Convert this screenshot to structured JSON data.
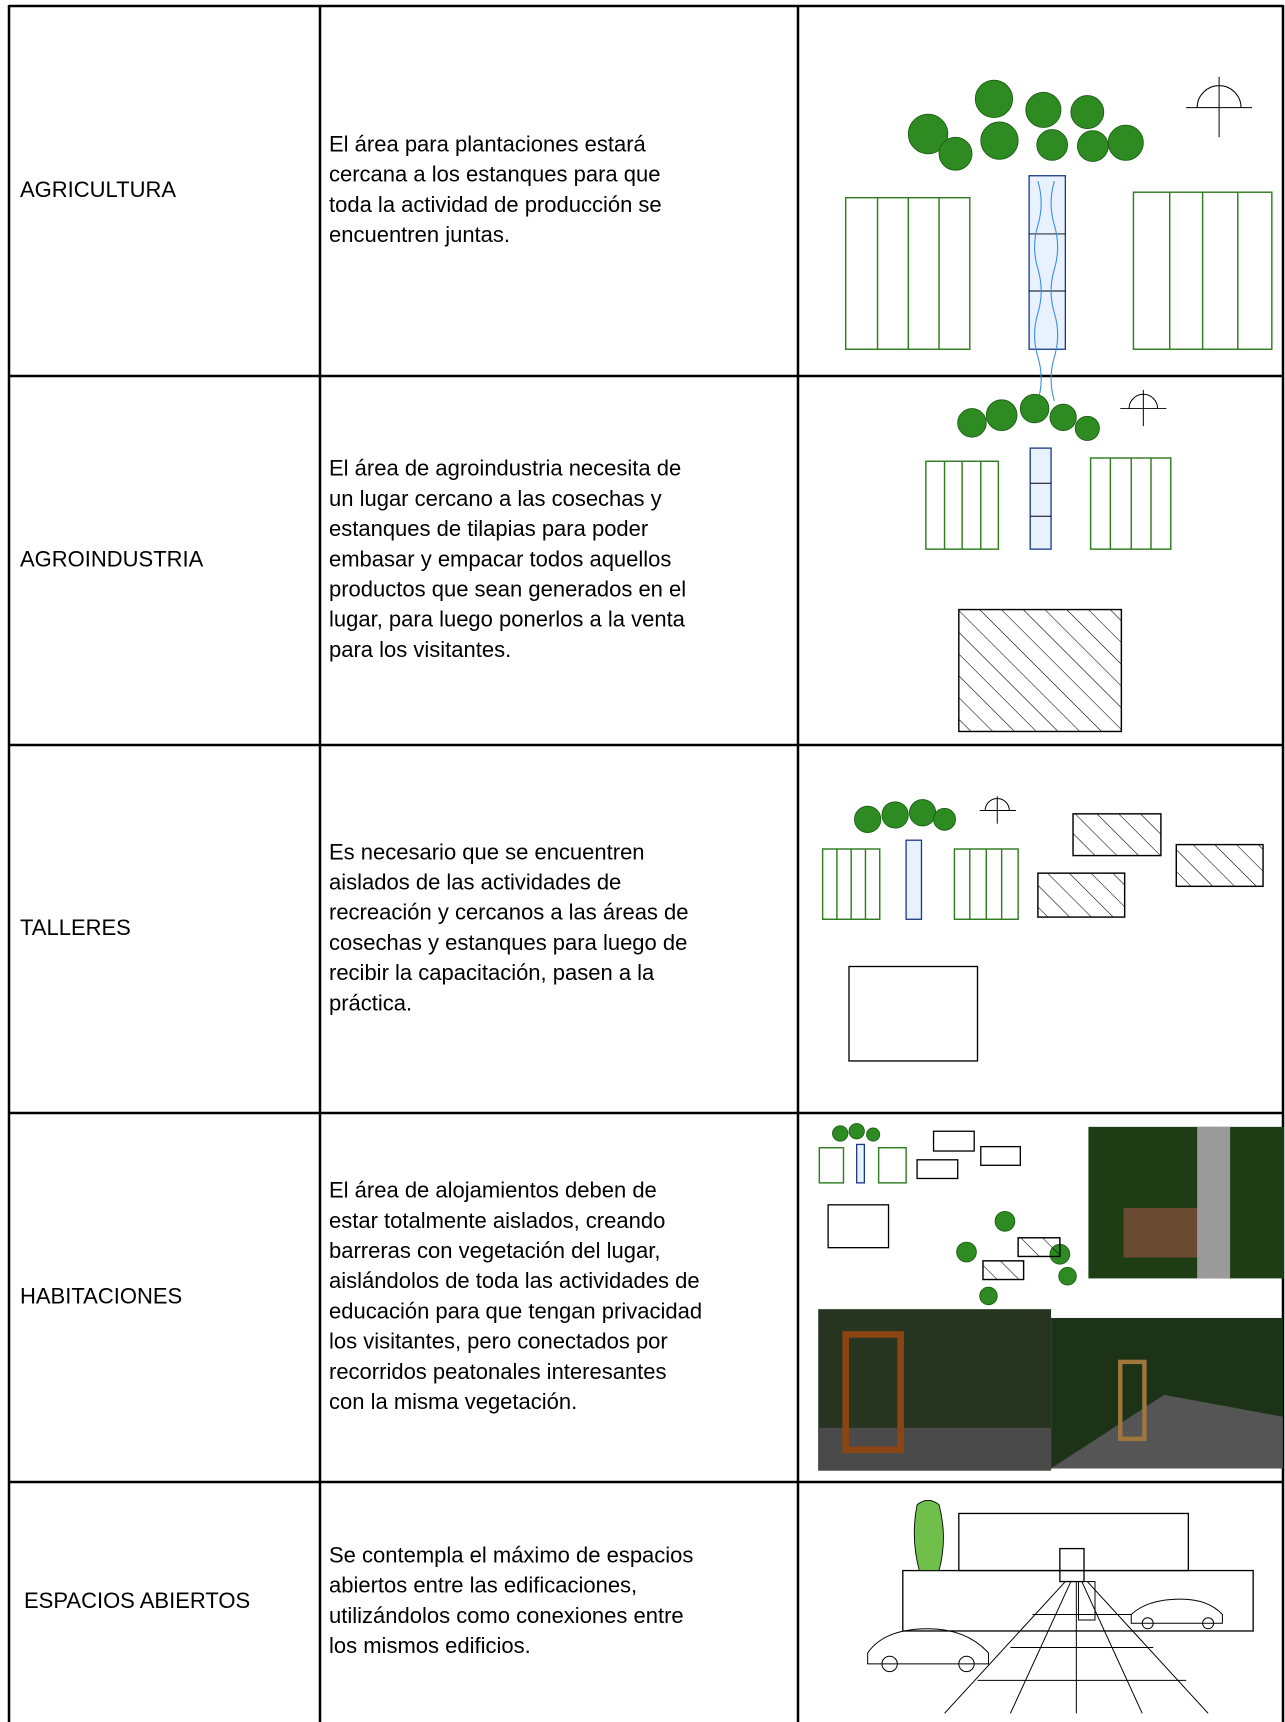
{
  "table": {
    "rows": [
      {
        "name": "AGRICULTURA",
        "description": [
          "El área para plantaciones estará",
          "cercana a los estanques para que",
          "toda la actividad de producción se",
          "encuentren juntas."
        ]
      },
      {
        "name": "AGROINDUSTRIA",
        "description": [
          "El área de agroindustria necesita de",
          "un lugar cercano a las cosechas y",
          "estanques de tilapias para poder",
          "embasar y empacar todos aquellos",
          "productos que sean generados en el",
          "lugar, para luego ponerlos a la venta",
          "para los visitantes."
        ]
      },
      {
        "name": "TALLERES",
        "description": [
          "Es necesario que se encuentren",
          "aislados de las actividades de",
          "recreación y cercanos a las áreas de",
          "cosechas y estanques para luego de",
          "recibir la capacitación, pasen a la",
          "práctica."
        ]
      },
      {
        "name": "HABITACIONES",
        "description": [
          "El área de alojamientos deben de",
          "estar totalmente aislados, creando",
          "barreras con vegetación del lugar,",
          "aislándolos de toda las actividades de",
          "educación para que tengan privacidad",
          "los visitantes, pero conectados por",
          "recorridos peatonales interesantes",
          "con la misma vegetación."
        ]
      },
      {
        "name": "ESPACIOS ABIERTOS",
        "description": [
          "Se contempla el máximo de espacios",
          "abiertos entre las edificaciones,",
          "utilizándolos como conexiones entre",
          "los mismos edificios."
        ]
      }
    ]
  }
}
